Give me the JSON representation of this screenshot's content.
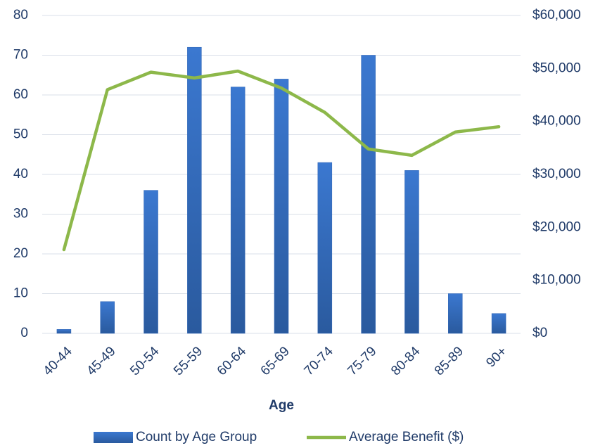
{
  "chart_data": {
    "type": "bar-line",
    "x_label": "Age",
    "categories": [
      "40-44",
      "45-49",
      "50-54",
      "55-59",
      "60-64",
      "65-69",
      "70-74",
      "75-79",
      "80-84",
      "85-89",
      "90+"
    ],
    "series": [
      {
        "name": "Count by Age Group",
        "type": "bar",
        "color": "#2f65b5",
        "values": [
          1,
          8,
          36,
          72,
          62,
          64,
          43,
          70,
          41,
          10,
          5
        ]
      },
      {
        "name": "Average Benefit ($)",
        "type": "line",
        "axis": "y2",
        "color": "#8db84a",
        "values": [
          15800,
          46000,
          49300,
          48200,
          49500,
          46300,
          41700,
          34800,
          33600,
          38000,
          39000
        ]
      }
    ],
    "ylim": [
      0,
      80
    ],
    "yticks": [
      0,
      10,
      20,
      30,
      40,
      50,
      60,
      70,
      80
    ],
    "y2lim": [
      0,
      60000
    ],
    "y2ticks": [
      {
        "value": 0,
        "label": "$0"
      },
      {
        "value": 10000,
        "label": "$10,000"
      },
      {
        "value": 20000,
        "label": "$20,000"
      },
      {
        "value": 30000,
        "label": "$30,000"
      },
      {
        "value": 40000,
        "label": "$40,000"
      },
      {
        "value": 50000,
        "label": "$50,000"
      },
      {
        "value": 60000,
        "label": "$60,000"
      }
    ],
    "grid": true,
    "legend": "bottom"
  }
}
